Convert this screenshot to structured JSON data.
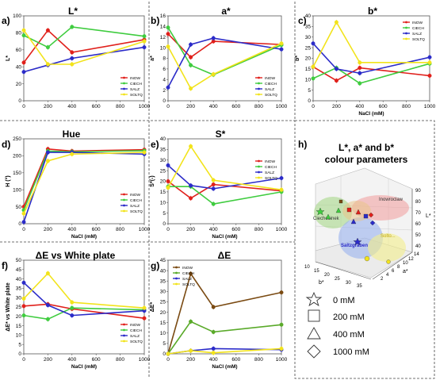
{
  "series_styles": [
    {
      "key": "INOW",
      "color": "#e0201b",
      "marker": "circle"
    },
    {
      "key": "CIECH",
      "color": "#3fcc3f",
      "marker": "circle"
    },
    {
      "key": "SALZ",
      "color": "#2b2bc8",
      "marker": "circle"
    },
    {
      "key": "SOLTQ",
      "color": "#f2e31b",
      "marker": "circle"
    }
  ],
  "diff_styles": [
    {
      "key": "INOW",
      "color": "#7a4a12"
    },
    {
      "key": "CIECH",
      "color": "#5aaa2a"
    },
    {
      "key": "SALZ",
      "color": "#2b2bc8"
    },
    {
      "key": "SOLTQ",
      "color": "#f2e31b"
    }
  ],
  "chart_data": [
    {
      "panel": "a)",
      "type": "line",
      "title": "L*",
      "xlabel": "",
      "ylabel": "L*",
      "x": [
        0,
        200,
        400,
        1000
      ],
      "xlim": [
        0,
        1000
      ],
      "xticks": [
        0,
        200,
        400,
        600,
        800,
        1000
      ],
      "ylim": [
        0,
        100
      ],
      "yticks": [
        0,
        20,
        40,
        60,
        80,
        100
      ],
      "series": [
        {
          "name": "INOW",
          "values": [
            45,
            83,
            57,
            72
          ]
        },
        {
          "name": "CIECH",
          "values": [
            77,
            63,
            87,
            76
          ]
        },
        {
          "name": "SALZ",
          "values": [
            34,
            42,
            50,
            63
          ]
        },
        {
          "name": "SOLTQ",
          "values": [
            83,
            43,
            43,
            70
          ]
        }
      ],
      "legend": "right"
    },
    {
      "panel": "b)",
      "type": "line",
      "title": "a*",
      "xlabel": "",
      "ylabel": "a*",
      "x": [
        0,
        200,
        400,
        1000
      ],
      "xlim": [
        0,
        1000
      ],
      "xticks": [
        0,
        200,
        400,
        600,
        800,
        1000
      ],
      "ylim": [
        0,
        16
      ],
      "yticks": [
        0,
        2,
        4,
        6,
        8,
        10,
        12,
        14,
        16
      ],
      "series": [
        {
          "name": "INOW",
          "values": [
            12.6,
            8.2,
            11.2,
            10.6
          ]
        },
        {
          "name": "CIECH",
          "values": [
            13.8,
            6.7,
            4.9,
            10.5
          ]
        },
        {
          "name": "SALZ",
          "values": [
            2.5,
            10.6,
            11.8,
            9.7
          ]
        },
        {
          "name": "SOLTQ",
          "values": [
            10.2,
            2.3,
            5.0,
            10.8
          ]
        }
      ],
      "legend": "right"
    },
    {
      "panel": "c)",
      "type": "line",
      "title": "b*",
      "xlabel": "NaCl (mM)",
      "ylabel": "b*",
      "x": [
        0,
        200,
        400,
        1000
      ],
      "xlim": [
        0,
        1000
      ],
      "xticks": [
        0,
        200,
        400,
        600,
        800,
        1000
      ],
      "ylim": [
        0,
        40
      ],
      "yticks": [
        0,
        5,
        10,
        15,
        20,
        25,
        30,
        35,
        40
      ],
      "series": [
        {
          "name": "INOW",
          "values": [
            16,
            9.5,
            15.5,
            11.8
          ]
        },
        {
          "name": "CIECH",
          "values": [
            10.5,
            15.5,
            8.2,
            17.5
          ]
        },
        {
          "name": "SALZ",
          "values": [
            27,
            15,
            13,
            20.5
          ]
        },
        {
          "name": "SOLTQ",
          "values": [
            16,
            37,
            18,
            18
          ]
        }
      ],
      "legend": "top-right"
    },
    {
      "panel": "d)",
      "type": "line",
      "title": "Hue",
      "xlabel": "NaCl (mM)",
      "ylabel": "H (°)",
      "x": [
        0,
        200,
        400,
        1000
      ],
      "xlim": [
        0,
        1000
      ],
      "xticks": [
        0,
        200,
        400,
        600,
        800,
        1000
      ],
      "ylim": [
        0,
        250
      ],
      "yticks": [
        0,
        50,
        100,
        150,
        200,
        250
      ],
      "series": [
        {
          "name": "INOW",
          "values": [
            50,
            220,
            214,
            218
          ]
        },
        {
          "name": "CIECH",
          "values": [
            40,
            214,
            212,
            215
          ]
        },
        {
          "name": "SALZ",
          "values": [
            5,
            210,
            210,
            205
          ]
        },
        {
          "name": "SOLTQ",
          "values": [
            30,
            185,
            205,
            210
          ]
        }
      ],
      "legend": "bottom-right"
    },
    {
      "panel": "e)",
      "type": "line",
      "title": "S*",
      "xlabel": "NaCl (mM)",
      "ylabel": "S*(-)",
      "x": [
        0,
        200,
        400,
        1000
      ],
      "xlim": [
        0,
        1000
      ],
      "xticks": [
        0,
        200,
        400,
        600,
        800,
        1000
      ],
      "ylim": [
        0,
        40
      ],
      "yticks": [
        0,
        5,
        10,
        15,
        20,
        25,
        30,
        35,
        40
      ],
      "series": [
        {
          "name": "INOW",
          "values": [
            20,
            12,
            18.5,
            15.5
          ]
        },
        {
          "name": "CIECH",
          "values": [
            17.5,
            17.5,
            9.3,
            15
          ]
        },
        {
          "name": "SALZ",
          "values": [
            27.5,
            18,
            16.5,
            21.5
          ]
        },
        {
          "name": "SOLTQ",
          "values": [
            17,
            36.5,
            20.5,
            16
          ]
        }
      ],
      "legend": "right"
    },
    {
      "panel": "f)",
      "type": "line",
      "title": "ΔE vs White plate",
      "xlabel": "NaCl (mM)",
      "ylabel": "ΔE* vs White plate",
      "x": [
        0,
        200,
        400,
        1000
      ],
      "xlim": [
        0,
        1000
      ],
      "xticks": [
        0,
        200,
        400,
        600,
        800,
        1000
      ],
      "ylim": [
        0,
        50
      ],
      "yticks": [
        0,
        5,
        10,
        15,
        20,
        25,
        30,
        35,
        40,
        45,
        50
      ],
      "series": [
        {
          "name": "INOW",
          "values": [
            25.5,
            26.5,
            24,
            19
          ]
        },
        {
          "name": "CIECH",
          "values": [
            20.5,
            18.5,
            24.5,
            23.5
          ]
        },
        {
          "name": "SALZ",
          "values": [
            38,
            26,
            20.5,
            23
          ]
        },
        {
          "name": "SOLTQ",
          "values": [
            29.5,
            43,
            27.5,
            24.5
          ]
        }
      ],
      "legend": "bottom-right"
    },
    {
      "panel": "g)",
      "type": "line",
      "title": "ΔE",
      "xlabel": "NaCl (mM)",
      "ylabel": "ΔE*",
      "x": [
        0,
        200,
        400,
        1000
      ],
      "xlim": [
        0,
        1000
      ],
      "xticks": [
        0,
        200,
        400,
        600,
        800,
        1000
      ],
      "ylim": [
        0,
        45
      ],
      "yticks": [
        0,
        5,
        10,
        15,
        20,
        25,
        30,
        35,
        40,
        45
      ],
      "series": [
        {
          "name": "INOW",
          "values": [
            0,
            38.5,
            22.5,
            29.5
          ]
        },
        {
          "name": "CIECH",
          "values": [
            0,
            15.5,
            10.5,
            14
          ]
        },
        {
          "name": "SALZ",
          "values": [
            0,
            1.5,
            2.5,
            2
          ]
        },
        {
          "name": "SOLTQ",
          "values": [
            0,
            1.5,
            0.5,
            2.5
          ]
        }
      ],
      "legend": "top-left"
    }
  ],
  "panel_h": {
    "label": "h)",
    "title_line1": "L*, a* and b*",
    "title_line2": "colour parameters",
    "z_ticks": [
      "90",
      "80",
      "70",
      "60",
      "50",
      "40"
    ],
    "z_label": "L*",
    "a_ticks": [
      "14",
      "12",
      "10",
      "8",
      "6",
      "4",
      "2"
    ],
    "a_label": "a*",
    "b_ticks": [
      "10",
      "15",
      "20",
      "25",
      "30",
      "35"
    ],
    "b_label": "b*",
    "region_labels": [
      "Inowroclaw",
      "Ciechocinek",
      "Saltzgraben",
      "Solto..."
    ],
    "markers": [
      {
        "shape": "star",
        "label": "0 mM"
      },
      {
        "shape": "square",
        "label": "200 mM"
      },
      {
        "shape": "triangle",
        "label": "400 mM"
      },
      {
        "shape": "diamond",
        "label": "1000 mM"
      }
    ]
  }
}
